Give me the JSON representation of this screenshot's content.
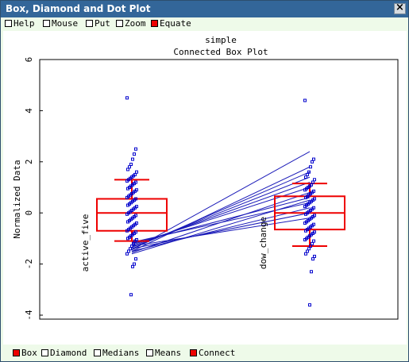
{
  "window": {
    "title": "Box, Diamond and Dot Plot"
  },
  "toolbar_top": [
    {
      "label": "Help",
      "checked": false
    },
    {
      "label": "Mouse",
      "checked": false
    },
    {
      "label": "Put",
      "checked": false
    },
    {
      "label": "Zoom",
      "checked": false
    },
    {
      "label": "Equate",
      "checked": true
    }
  ],
  "toolbar_bottom": [
    {
      "label": "Box",
      "checked": true
    },
    {
      "label": "Diamond",
      "checked": false
    },
    {
      "label": "Medians",
      "checked": false
    },
    {
      "label": "Means",
      "checked": false
    },
    {
      "label": "Connect",
      "checked": true
    }
  ],
  "colors": {
    "titlebar": "#336699",
    "panel": "#eefae9",
    "box": "#ee0000",
    "points": "#0000cc"
  },
  "chart_data": {
    "type": "box",
    "title": "simple",
    "subtitle": "Connected Box Plot",
    "ylabel": "Normalized Data",
    "ylim": [
      -4,
      6
    ],
    "yticks": [
      "-4",
      "-2",
      "0",
      "2",
      "4",
      "6"
    ],
    "series": [
      {
        "name": "active_five",
        "q1": -0.7,
        "median": 0,
        "q3": 0.55,
        "whisker_low": -1.1,
        "whisker_high": 1.3,
        "points": [
          4.5,
          2.5,
          2.3,
          2.1,
          1.9,
          1.8,
          1.7,
          1.6,
          1.5,
          1.45,
          1.4,
          1.35,
          1.3,
          1.25,
          1.2,
          1.15,
          1.1,
          1.05,
          1.0,
          0.95,
          0.9,
          0.85,
          0.8,
          0.75,
          0.7,
          0.65,
          0.6,
          0.55,
          0.5,
          0.45,
          0.4,
          0.35,
          0.3,
          0.25,
          0.2,
          0.15,
          0.1,
          0.05,
          0.0,
          -0.05,
          -0.1,
          -0.15,
          -0.2,
          -0.25,
          -0.3,
          -0.35,
          -0.4,
          -0.45,
          -0.5,
          -0.55,
          -0.6,
          -0.65,
          -0.7,
          -0.75,
          -0.8,
          -0.85,
          -0.9,
          -0.95,
          -1.0,
          -1.05,
          -1.1,
          -1.2,
          -1.3,
          -1.4,
          -1.5,
          -1.6,
          -1.8,
          -2.0,
          -2.1,
          -3.2
        ]
      },
      {
        "name": "dow_change",
        "q1": -0.65,
        "median": 0,
        "q3": 0.65,
        "whisker_low": -1.3,
        "whisker_high": 1.15,
        "points": [
          4.4,
          2.1,
          2.0,
          1.8,
          1.6,
          1.5,
          1.4,
          1.3,
          1.2,
          1.1,
          1.05,
          1.0,
          0.95,
          0.9,
          0.85,
          0.8,
          0.75,
          0.7,
          0.65,
          0.6,
          0.55,
          0.5,
          0.45,
          0.4,
          0.35,
          0.3,
          0.25,
          0.2,
          0.15,
          0.1,
          0.05,
          0.0,
          -0.05,
          -0.1,
          -0.15,
          -0.2,
          -0.25,
          -0.3,
          -0.35,
          -0.4,
          -0.45,
          -0.5,
          -0.55,
          -0.6,
          -0.65,
          -0.7,
          -0.75,
          -0.8,
          -0.85,
          -0.9,
          -0.95,
          -1.0,
          -1.05,
          -1.1,
          -1.2,
          -1.3,
          -1.4,
          -1.5,
          -1.6,
          -1.7,
          -1.8,
          -2.3,
          -3.6
        ]
      }
    ],
    "connections": [
      [
        -1.45,
        2.4
      ],
      [
        -1.5,
        1.8
      ],
      [
        -1.4,
        1.6
      ],
      [
        -1.35,
        1.4
      ],
      [
        -1.3,
        1.2
      ],
      [
        -1.25,
        1.0
      ],
      [
        -1.55,
        0.8
      ],
      [
        -1.2,
        0.6
      ],
      [
        -1.6,
        0.5
      ],
      [
        -1.15,
        0.4
      ],
      [
        -1.5,
        0.2
      ],
      [
        -1.4,
        0.0
      ],
      [
        -1.3,
        -0.2
      ]
    ]
  }
}
